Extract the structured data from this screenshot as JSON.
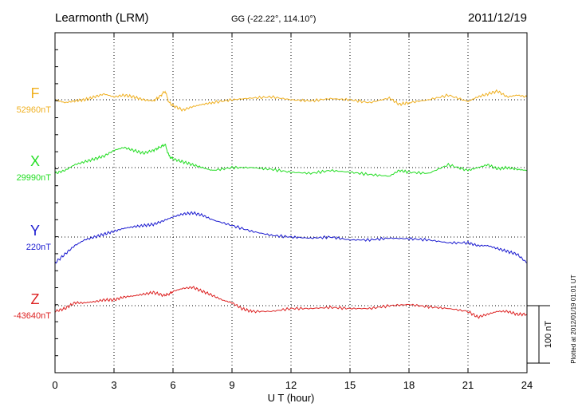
{
  "header": {
    "station": "Learmonth (LRM)",
    "coords": "GG (-22.22°, 114.10°)",
    "date": "2011/12/19"
  },
  "footer_note": "Plotted at 2012/01/19 01:01  UT",
  "chart_data": {
    "type": "line",
    "xlabel": "U T (hour)",
    "xlim": [
      0,
      24
    ],
    "xticks": [
      "0",
      "3",
      "6",
      "9",
      "12",
      "15",
      "18",
      "21",
      "24"
    ],
    "scale_bar_label": "100 nT",
    "scale_bar_nT": 100,
    "series": [
      {
        "name": "F",
        "baseline_label": "52960nT",
        "baseline_nT": 52960,
        "color": "#f0b020",
        "x": [
          0,
          0.5,
          1,
          1.5,
          2,
          2.5,
          3,
          3.5,
          4,
          4.5,
          5,
          5.3,
          5.6,
          5.8,
          6,
          6.5,
          7,
          7.5,
          8,
          9,
          10,
          11,
          12,
          13,
          14,
          15,
          16,
          17,
          17.5,
          18,
          19,
          20,
          21,
          21.5,
          22,
          22.5,
          23,
          23.5,
          24
        ],
        "y": [
          0,
          -5,
          -2,
          0,
          5,
          10,
          5,
          8,
          5,
          0,
          -2,
          5,
          15,
          -5,
          -10,
          -18,
          -12,
          -8,
          -5,
          0,
          3,
          5,
          0,
          -2,
          2,
          0,
          -5,
          3,
          -8,
          -5,
          0,
          8,
          -3,
          5,
          10,
          15,
          5,
          8,
          5
        ]
      },
      {
        "name": "X",
        "baseline_label": "29990nT",
        "baseline_nT": 29990,
        "color": "#22dd22",
        "x": [
          0,
          0.5,
          1,
          1.5,
          2,
          2.5,
          3,
          3.5,
          4,
          4.5,
          5,
          5.3,
          5.6,
          5.8,
          6,
          6.5,
          7,
          7.5,
          8,
          9,
          10,
          11,
          12,
          13,
          14,
          15,
          16,
          17,
          17.5,
          18,
          19,
          20,
          21,
          21.5,
          22,
          22.5,
          23,
          23.5,
          24
        ],
        "y": [
          -10,
          -5,
          5,
          10,
          15,
          20,
          30,
          35,
          30,
          25,
          30,
          35,
          40,
          20,
          15,
          10,
          5,
          0,
          -5,
          0,
          0,
          -3,
          -8,
          -10,
          -5,
          -8,
          -12,
          -15,
          -5,
          -8,
          -10,
          5,
          -5,
          0,
          5,
          -2,
          0,
          -3,
          -5
        ]
      },
      {
        "name": "Y",
        "baseline_label": "220nT",
        "baseline_nT": 220,
        "color": "#1a1ad0",
        "x": [
          0,
          0.5,
          1,
          1.5,
          2,
          2.5,
          3,
          3.5,
          4,
          4.5,
          5,
          5.5,
          6,
          6.5,
          7,
          7.5,
          8,
          9,
          10,
          11,
          12,
          13,
          14,
          15,
          16,
          17,
          18,
          19,
          20,
          21,
          21.5,
          22,
          22.5,
          23,
          23.5,
          24
        ],
        "y": [
          -45,
          -30,
          -15,
          -5,
          0,
          5,
          10,
          15,
          18,
          20,
          22,
          28,
          35,
          40,
          42,
          38,
          30,
          20,
          10,
          3,
          0,
          -2,
          0,
          -5,
          -5,
          -2,
          -3,
          -5,
          -10,
          -10,
          -15,
          -15,
          -20,
          -25,
          -30,
          -45
        ]
      },
      {
        "name": "Z",
        "baseline_label": "-43640nT",
        "baseline_nT": -43640,
        "color": "#dd2222",
        "x": [
          0,
          0.5,
          1,
          1.5,
          2,
          2.5,
          3,
          3.5,
          4,
          4.5,
          5,
          5.5,
          5.8,
          6,
          6.5,
          7,
          7.5,
          8,
          8.5,
          9,
          9.5,
          10,
          11,
          12,
          13,
          14,
          15,
          16,
          17,
          18,
          19,
          20,
          21,
          21.5,
          22,
          22.5,
          23,
          23.5,
          24
        ],
        "y": [
          -10,
          -5,
          5,
          5,
          7,
          10,
          10,
          15,
          17,
          20,
          23,
          18,
          20,
          25,
          30,
          32,
          25,
          18,
          10,
          5,
          -5,
          -10,
          -10,
          -5,
          -5,
          -3,
          -5,
          -5,
          0,
          2,
          -2,
          -5,
          -10,
          -20,
          -15,
          -10,
          -10,
          -15,
          -15
        ]
      }
    ]
  }
}
